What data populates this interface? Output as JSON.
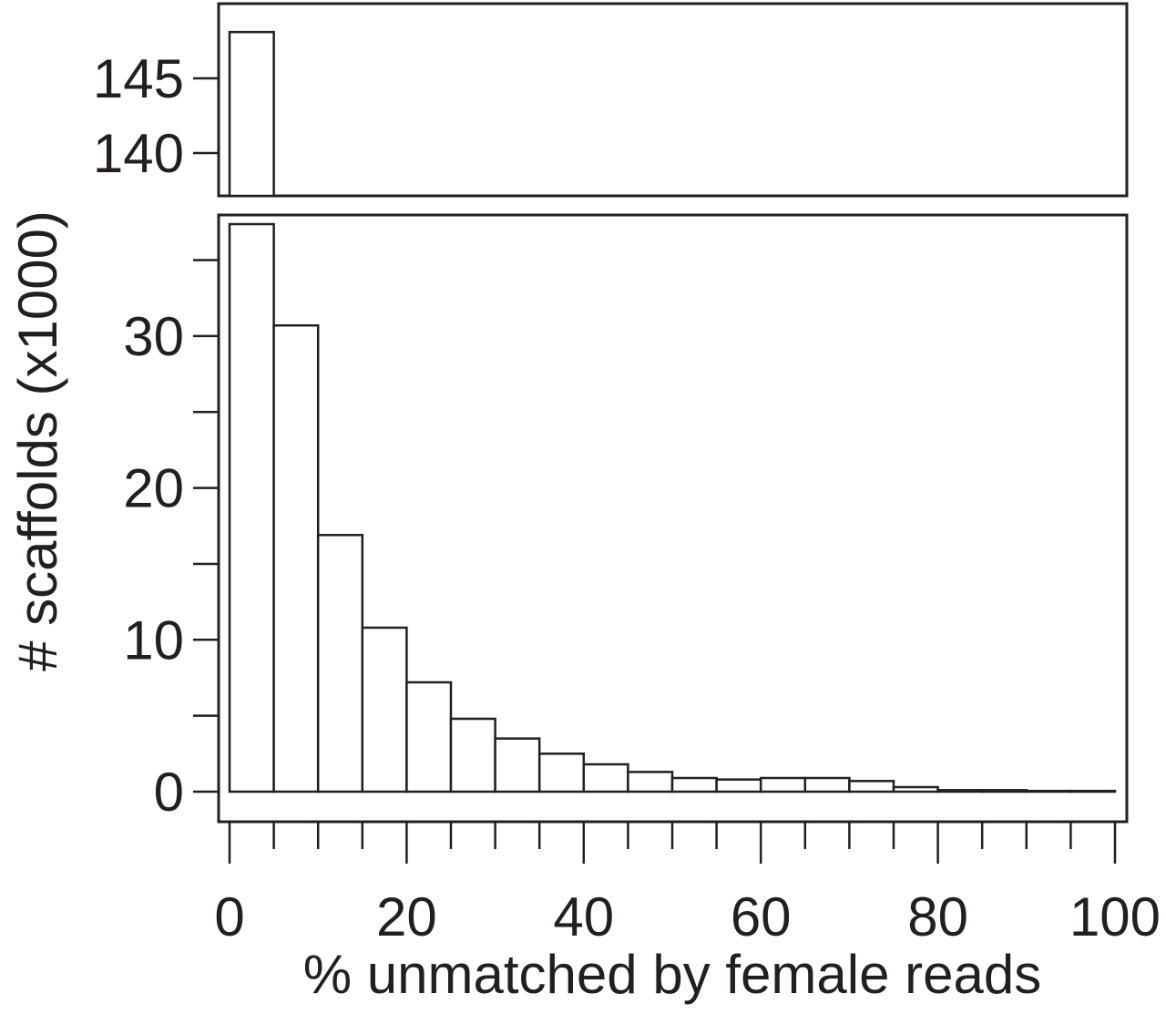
{
  "chart_data": {
    "type": "bar",
    "xlabel": "% unmatched by female reads",
    "ylabel": "# scaffolds (x1000)",
    "bin_edges": [
      0,
      5,
      10,
      15,
      20,
      25,
      30,
      35,
      40,
      45,
      50,
      55,
      60,
      65,
      70,
      75,
      80,
      85,
      90,
      95,
      100
    ],
    "values": [
      148.1,
      30.7,
      16.9,
      10.8,
      7.2,
      4.8,
      3.5,
      2.5,
      1.8,
      1.3,
      0.9,
      0.8,
      0.9,
      0.9,
      0.7,
      0.3,
      0.1,
      0.1,
      0.05,
      0.05
    ],
    "xlim": [
      0,
      100
    ],
    "x_ticks": [
      0,
      20,
      40,
      60,
      80,
      100
    ],
    "x_minor_step": 5,
    "y_break": true,
    "ylim_lower": [
      0,
      38
    ],
    "ylim_upper": [
      137,
      150
    ],
    "y_ticks_lower": [
      0,
      10,
      20,
      30
    ],
    "y_minor_lower": [
      5,
      15,
      25,
      35
    ],
    "y_ticks_upper": [
      140,
      145
    ],
    "grid": false,
    "colors": {
      "stroke": "#231f20",
      "fill": "#ffffff"
    }
  }
}
